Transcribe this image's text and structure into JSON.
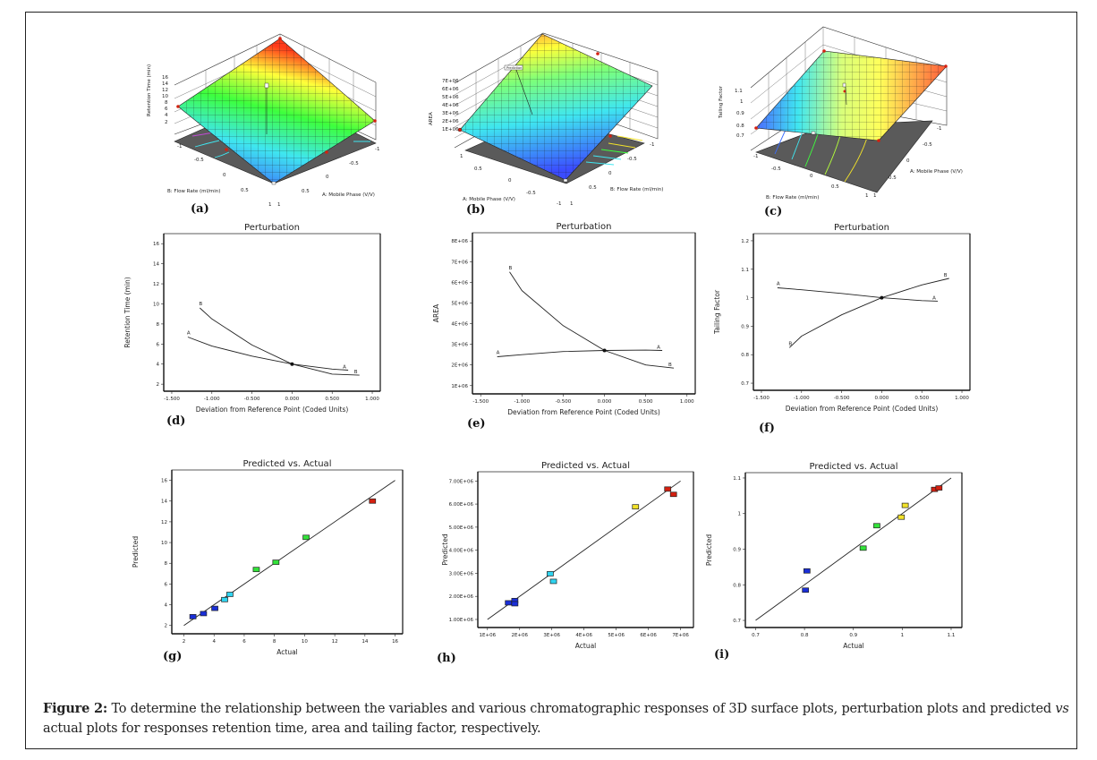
{
  "caption": {
    "label": "Figure 2:",
    "text_before_vs": " To determine the relationship between the variables and various chromatographic responses of 3D surface plots, perturbation plots and predicted ",
    "vs": "vs",
    "text_after_vs": " actual plots for responses retention time, area and tailing factor, respectively."
  },
  "colors": {
    "surface_low": "#3b4cff",
    "surface_mid1": "#3fe6f0",
    "surface_mid2": "#3dff3d",
    "surface_mid3": "#ffff3a",
    "surface_high": "#ff3a1a",
    "floor": "#5a5a5a",
    "line": "#222222",
    "point_blue": "#1a2fd8",
    "point_cyan": "#2fd4f0",
    "point_green": "#33e23a",
    "point_yellow": "#f2e22a",
    "point_red": "#d42010"
  },
  "chart_data": [
    {
      "id": "a",
      "panel_label": "(a)",
      "type": "surface3d",
      "zlabel": "Retention Time (min)",
      "xlabel": "A: Mobile Phase (V/V)",
      "ylabel": "B: Flow Rate (ml/min)",
      "zticks": [
        "2",
        "4",
        "6",
        "8",
        "10",
        "12",
        "14",
        "16"
      ],
      "xticks": [
        "-1",
        "-0.5",
        "0",
        "0.5",
        "1"
      ],
      "yticks": [
        "-1",
        "-0.5",
        "0",
        "0.5",
        "1"
      ],
      "zlim": [
        2,
        16
      ],
      "corners": {
        "A-1_B-1": 16.0,
        "A1_B-1": 6.6,
        "A-1_B1": 4.9,
        "A1_B1": 2.5
      },
      "center_point": 4.0
    },
    {
      "id": "b",
      "panel_label": "(b)",
      "type": "surface3d",
      "zlabel": "AREA",
      "xlabel": "A: Mobile Phase (V/V)",
      "ylabel": "B: Flow Rate (ml/min)",
      "zticks": [
        "1E+06",
        "2E+06",
        "3E+06",
        "4E+06",
        "5E+06",
        "6E+06",
        "7E+06"
      ],
      "xticks": [
        "1",
        "0.5",
        "0",
        "-0.5",
        "-1"
      ],
      "yticks": [
        "-1",
        "-0.5",
        "0",
        "0.5",
        "1"
      ],
      "zlim": [
        1000000,
        7000000
      ],
      "center_point": 2700000,
      "annotation": "Prediction"
    },
    {
      "id": "c",
      "panel_label": "(c)",
      "type": "surface3d",
      "zlabel": "Tailing Factor",
      "xlabel": "A: Mobile Phase (V/V)",
      "ylabel": "B: Flow Rate (ml/min)",
      "zticks": [
        "0.7",
        "0.8",
        "0.9",
        "1",
        "1.1"
      ],
      "xticks": [
        "-1",
        "-0.5",
        "0",
        "0.5",
        "1"
      ],
      "yticks": [
        "-1",
        "-0.5",
        "0",
        "0.5",
        "1"
      ],
      "zlim": [
        0.7,
        1.1
      ],
      "center_point": 1.0
    },
    {
      "id": "d",
      "panel_label": "(d)",
      "type": "line",
      "title": "Perturbation",
      "xlabel": "Deviation from Reference Point (Coded Units)",
      "ylabel": "Retention Time (min)",
      "xlim": [
        -1.6,
        1.1
      ],
      "ylim": [
        1.3,
        17
      ],
      "xticks": [
        -1.5,
        -1.0,
        -0.5,
        0.0,
        0.5,
        1.0
      ],
      "xtick_labels": [
        "-1.500",
        "-1.000",
        "-0.500",
        "0.000",
        "0.500",
        "1.000"
      ],
      "yticks": [
        2,
        4,
        6,
        8,
        10,
        12,
        14,
        16
      ],
      "ytick_labels": [
        "2",
        "4",
        "6",
        "8",
        "10",
        "12",
        "14",
        "16"
      ],
      "series": [
        {
          "name": "A",
          "x": [
            -1.3,
            -1.0,
            -0.5,
            0.0,
            0.5,
            0.7
          ],
          "y": [
            6.7,
            5.8,
            4.8,
            4.0,
            3.5,
            3.4
          ]
        },
        {
          "name": "B",
          "x": [
            -1.15,
            -1.0,
            -0.5,
            0.0,
            0.5,
            0.84
          ],
          "y": [
            9.6,
            8.5,
            5.9,
            4.0,
            3.0,
            2.9
          ]
        }
      ],
      "reference_point": {
        "x": 0.0,
        "y": 4.0
      }
    },
    {
      "id": "e",
      "panel_label": "(e)",
      "type": "line",
      "title": "Perturbation",
      "xlabel": "Deviation from Reference Point (Coded Units)",
      "ylabel": "AREA",
      "xlim": [
        -1.6,
        1.1
      ],
      "ylim": [
        600000,
        8400000
      ],
      "xticks": [
        -1.5,
        -1.0,
        -0.5,
        0.0,
        0.5,
        1.0
      ],
      "xtick_labels": [
        "-1.500",
        "-1.000",
        "-0.500",
        "0.000",
        "0.500",
        "1.000"
      ],
      "yticks": [
        1000000,
        2000000,
        3000000,
        4000000,
        5000000,
        6000000,
        7000000,
        8000000
      ],
      "ytick_labels": [
        "1E+06",
        "2E+06",
        "3E+06",
        "4E+06",
        "5E+06",
        "6E+06",
        "7E+06",
        "8E+06"
      ],
      "series": [
        {
          "name": "A",
          "x": [
            -1.3,
            -1.0,
            -0.5,
            0.0,
            0.5,
            0.7
          ],
          "y": [
            2400000,
            2500000,
            2650000,
            2700000,
            2720000,
            2700000
          ]
        },
        {
          "name": "B",
          "x": [
            -1.15,
            -1.0,
            -0.5,
            0.0,
            0.5,
            0.84
          ],
          "y": [
            6500000,
            5600000,
            3900000,
            2700000,
            2000000,
            1850000
          ]
        }
      ],
      "reference_point": {
        "x": 0.0,
        "y": 2700000
      }
    },
    {
      "id": "f",
      "panel_label": "(f)",
      "type": "line",
      "title": "Perturbation",
      "xlabel": "Deviation from Reference Point (Coded Units)",
      "ylabel": "Tailing Factor",
      "xlim": [
        -1.6,
        1.1
      ],
      "ylim": [
        0.675,
        1.225
      ],
      "xticks": [
        -1.5,
        -1.0,
        -0.5,
        0.0,
        0.5,
        1.0
      ],
      "xtick_labels": [
        "-1.500",
        "-1.000",
        "-0.500",
        "0.000",
        "0.500",
        "1.000"
      ],
      "yticks": [
        0.7,
        0.8,
        0.9,
        1.0,
        1.1,
        1.2
      ],
      "ytick_labels": [
        "0.7",
        "0.8",
        "0.9",
        "1",
        "1.1",
        "1.2"
      ],
      "series": [
        {
          "name": "A",
          "x": [
            -1.3,
            -1.0,
            -0.5,
            0.0,
            0.5,
            0.7
          ],
          "y": [
            1.035,
            1.028,
            1.015,
            1.0,
            0.99,
            0.988
          ]
        },
        {
          "name": "B",
          "x": [
            -1.15,
            -1.0,
            -0.5,
            0.0,
            0.5,
            0.84
          ],
          "y": [
            0.825,
            0.865,
            0.94,
            1.0,
            1.045,
            1.068
          ]
        }
      ],
      "reference_point": {
        "x": 0.0,
        "y": 1.0
      }
    },
    {
      "id": "g",
      "panel_label": "(g)",
      "type": "scatter",
      "title": "Predicted vs. Actual",
      "xlabel": "Actual",
      "ylabel": "Predicted",
      "xlim": [
        1.2,
        16.5
      ],
      "ylim": [
        1.2,
        17
      ],
      "xticks": [
        2,
        4,
        6,
        8,
        10,
        12,
        14,
        16
      ],
      "xtick_labels": [
        "2",
        "4",
        "6",
        "8",
        "10",
        "12",
        "14",
        "16"
      ],
      "yticks": [
        2,
        4,
        6,
        8,
        10,
        12,
        14,
        16
      ],
      "ytick_labels": [
        "2",
        "4",
        "6",
        "8",
        "10",
        "12",
        "14",
        "16"
      ],
      "diagonal": [
        2,
        16
      ],
      "points": [
        {
          "x": 2.6,
          "y": 2.85,
          "color": "point_blue"
        },
        {
          "x": 3.3,
          "y": 3.15,
          "color": "point_blue"
        },
        {
          "x": 4.05,
          "y": 3.65,
          "color": "point_blue"
        },
        {
          "x": 4.7,
          "y": 4.5,
          "color": "point_cyan"
        },
        {
          "x": 5.05,
          "y": 5.0,
          "color": "point_cyan"
        },
        {
          "x": 6.8,
          "y": 7.4,
          "color": "point_green"
        },
        {
          "x": 8.1,
          "y": 8.1,
          "color": "point_green"
        },
        {
          "x": 10.1,
          "y": 10.5,
          "color": "point_green"
        },
        {
          "x": 14.5,
          "y": 14.0,
          "color": "point_red"
        }
      ]
    },
    {
      "id": "h",
      "panel_label": "(h)",
      "type": "scatter",
      "title": "Predicted vs. Actual",
      "xlabel": "Actual",
      "ylabel": "Predicted",
      "xlim": [
        700000,
        7400000
      ],
      "ylim": [
        650000,
        7400000
      ],
      "xticks": [
        1000000,
        2000000,
        3000000,
        4000000,
        5000000,
        6000000,
        7000000
      ],
      "xtick_labels": [
        "1E+06",
        "2E+06",
        "3E+06",
        "4E+06",
        "5E+06",
        "6E+06",
        "7E+06"
      ],
      "yticks": [
        1000000,
        2000000,
        3000000,
        4000000,
        5000000,
        6000000,
        7000000
      ],
      "ytick_labels": [
        "1.00E+06",
        "2.00E+06",
        "3.00E+06",
        "4.00E+06",
        "5.00E+06",
        "6.00E+06",
        "7.00E+06"
      ],
      "diagonal": [
        1000000,
        7000000
      ],
      "points": [
        {
          "x": 1650000,
          "y": 1720000,
          "color": "point_blue"
        },
        {
          "x": 1850000,
          "y": 1820000,
          "color": "point_blue"
        },
        {
          "x": 1850000,
          "y": 1680000,
          "color": "point_blue"
        },
        {
          "x": 2950000,
          "y": 2980000,
          "color": "point_cyan"
        },
        {
          "x": 3050000,
          "y": 2650000,
          "color": "point_cyan"
        },
        {
          "x": 5600000,
          "y": 5880000,
          "color": "point_yellow"
        },
        {
          "x": 6600000,
          "y": 6650000,
          "color": "point_red"
        },
        {
          "x": 6780000,
          "y": 6420000,
          "color": "point_red"
        }
      ]
    },
    {
      "id": "i",
      "panel_label": "(i)",
      "type": "scatter",
      "title": "Predicted vs. Actual",
      "xlabel": "Actual",
      "ylabel": "Predicted",
      "xlim": [
        0.679,
        1.122
      ],
      "ylim": [
        0.68,
        1.115
      ],
      "xticks": [
        0.7,
        0.8,
        0.9,
        1.0,
        1.1
      ],
      "xtick_labels": [
        "0.7",
        "0.8",
        "0.9",
        "1",
        "1.1"
      ],
      "yticks": [
        0.7,
        0.8,
        0.9,
        1.0,
        1.1
      ],
      "ytick_labels": [
        "0.7",
        "0.8",
        "0.9",
        "1",
        "1.1"
      ],
      "diagonal": [
        0.7,
        1.1
      ],
      "points": [
        {
          "x": 0.802,
          "y": 0.785,
          "color": "point_blue"
        },
        {
          "x": 0.805,
          "y": 0.839,
          "color": "point_blue"
        },
        {
          "x": 0.92,
          "y": 0.903,
          "color": "point_green"
        },
        {
          "x": 0.948,
          "y": 0.966,
          "color": "point_green"
        },
        {
          "x": 0.998,
          "y": 0.99,
          "color": "point_yellow"
        },
        {
          "x": 1.006,
          "y": 1.023,
          "color": "point_yellow"
        },
        {
          "x": 1.066,
          "y": 1.068,
          "color": "point_red"
        },
        {
          "x": 1.075,
          "y": 1.072,
          "color": "point_red"
        }
      ]
    }
  ]
}
